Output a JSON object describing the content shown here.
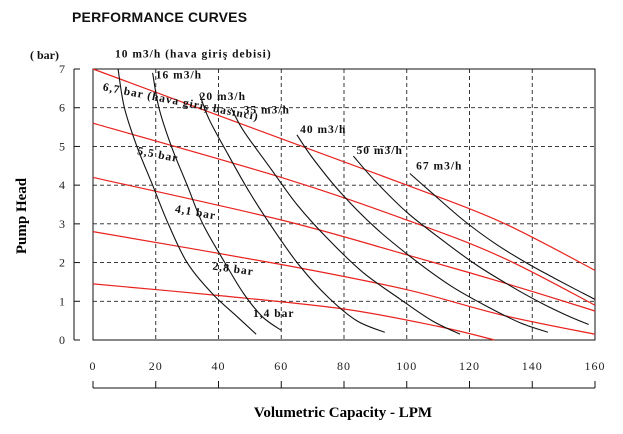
{
  "header": {
    "title": "PERFORMANCE CURVES"
  },
  "chart_data": {
    "type": "line",
    "title": "PERFORMANCE CURVES",
    "xlabel": "Volumetric Capacity - LPM",
    "ylabel": "Pump Head",
    "yunit": "( bar)",
    "xlim": [
      0,
      160
    ],
    "ylim": [
      0,
      7
    ],
    "x_ticks": [
      "0",
      "20",
      "40",
      "60",
      "80",
      "100",
      "120",
      "140",
      "160"
    ],
    "y_ticks": [
      "0",
      "1",
      "2",
      "3",
      "4",
      "5",
      "6",
      "7"
    ],
    "grid": true,
    "series_air_pressure": [
      {
        "name": "6,7 bar (hava giriş basıncı)",
        "color": "#e8231f",
        "x": [
          0,
          60,
          100,
          130,
          160
        ],
        "y": [
          7.0,
          5.2,
          4.0,
          3.05,
          1.8
        ]
      },
      {
        "name": "5,5 bar",
        "color": "#e8231f",
        "x": [
          0,
          60,
          100,
          130,
          160
        ],
        "y": [
          5.6,
          4.2,
          3.1,
          2.15,
          0.9
        ]
      },
      {
        "name": "4,1 bar",
        "color": "#e8231f",
        "x": [
          0,
          60,
          100,
          130,
          160
        ],
        "y": [
          4.2,
          3.1,
          2.2,
          1.5,
          0.75
        ]
      },
      {
        "name": "2,8 bar",
        "color": "#e8231f",
        "x": [
          0,
          60,
          100,
          130,
          160
        ],
        "y": [
          2.8,
          1.95,
          1.3,
          0.65,
          0.15
        ]
      },
      {
        "name": "1,4 bar",
        "color": "#e8231f",
        "x": [
          0,
          40,
          80,
          110,
          128
        ],
        "y": [
          1.45,
          1.15,
          0.8,
          0.35,
          0.0
        ]
      }
    ],
    "series_air_flow": [
      {
        "name": "10 m3/h (hava giriş debisi)",
        "color": "#111111",
        "x": [
          8,
          10,
          14,
          19,
          24,
          30,
          38,
          46,
          52
        ],
        "y": [
          7.0,
          6.0,
          5.0,
          4.0,
          3.0,
          2.0,
          1.2,
          0.6,
          0.15
        ]
      },
      {
        "name": "16 m3/h",
        "color": "#111111",
        "x": [
          19,
          21,
          25,
          30,
          35,
          42,
          48,
          54,
          60
        ],
        "y": [
          6.9,
          6.0,
          5.0,
          4.0,
          3.0,
          2.0,
          1.2,
          0.6,
          0.25
        ]
      },
      {
        "name": "20 m3/h",
        "color": "#111111",
        "x": [
          34,
          37,
          43,
          50,
          58,
          66,
          75,
          84,
          93
        ],
        "y": [
          6.35,
          5.7,
          4.8,
          3.8,
          2.8,
          1.9,
          1.1,
          0.5,
          0.2
        ]
      },
      {
        "name": "35 m3/h",
        "color": "#111111",
        "x": [
          44,
          48,
          56,
          65,
          75,
          86,
          98,
          108,
          117
        ],
        "y": [
          6.0,
          5.4,
          4.5,
          3.5,
          2.6,
          1.75,
          1.05,
          0.5,
          0.15
        ]
      },
      {
        "name": "40 m3/h",
        "color": "#111111",
        "x": [
          65,
          70,
          79,
          90,
          102,
          114,
          126,
          136,
          145
        ],
        "y": [
          5.3,
          4.7,
          3.8,
          2.9,
          2.1,
          1.4,
          0.85,
          0.45,
          0.2
        ]
      },
      {
        "name": "50 m3/h",
        "color": "#111111",
        "x": [
          83,
          90,
          100,
          111,
          122,
          133,
          143,
          152,
          158
        ],
        "y": [
          4.75,
          4.1,
          3.3,
          2.6,
          1.95,
          1.4,
          0.95,
          0.6,
          0.4
        ]
      },
      {
        "name": "67 m3/h",
        "color": "#111111",
        "x": [
          101,
          108,
          118,
          128,
          138,
          147,
          154,
          160
        ],
        "y": [
          4.3,
          3.8,
          3.1,
          2.5,
          2.0,
          1.6,
          1.3,
          1.05
        ]
      }
    ],
    "annotations": [
      {
        "text": "10 m3/h (hava giriş debisi)",
        "x": 7,
        "y": 7.3,
        "rotate": 0
      },
      {
        "text": "16 m3/h",
        "x": 20,
        "y": 6.75,
        "rotate": 0
      },
      {
        "text": "20 m3/h",
        "x": 34,
        "y": 6.2,
        "rotate": 0
      },
      {
        "text": "35 m3/h",
        "x": 48,
        "y": 5.85,
        "rotate": 0
      },
      {
        "text": "40 m3/h",
        "x": 66,
        "y": 5.35,
        "rotate": 0
      },
      {
        "text": "50 m3/h",
        "x": 84,
        "y": 4.8,
        "rotate": 0
      },
      {
        "text": "67 m3/h",
        "x": 103,
        "y": 4.4,
        "rotate": 0
      },
      {
        "text": "6,7 bar (hava giriş basıncı)",
        "x": 3,
        "y": 6.45,
        "rotate": 11
      },
      {
        "text": "5,5 bar",
        "x": 14,
        "y": 4.8,
        "rotate": 11
      },
      {
        "text": "4,1 bar",
        "x": 26,
        "y": 3.3,
        "rotate": 10
      },
      {
        "text": "2,8 bar",
        "x": 38,
        "y": 1.82,
        "rotate": 8
      },
      {
        "text": "1,4 bar",
        "x": 51,
        "y": 0.6,
        "rotate": 0
      }
    ]
  }
}
